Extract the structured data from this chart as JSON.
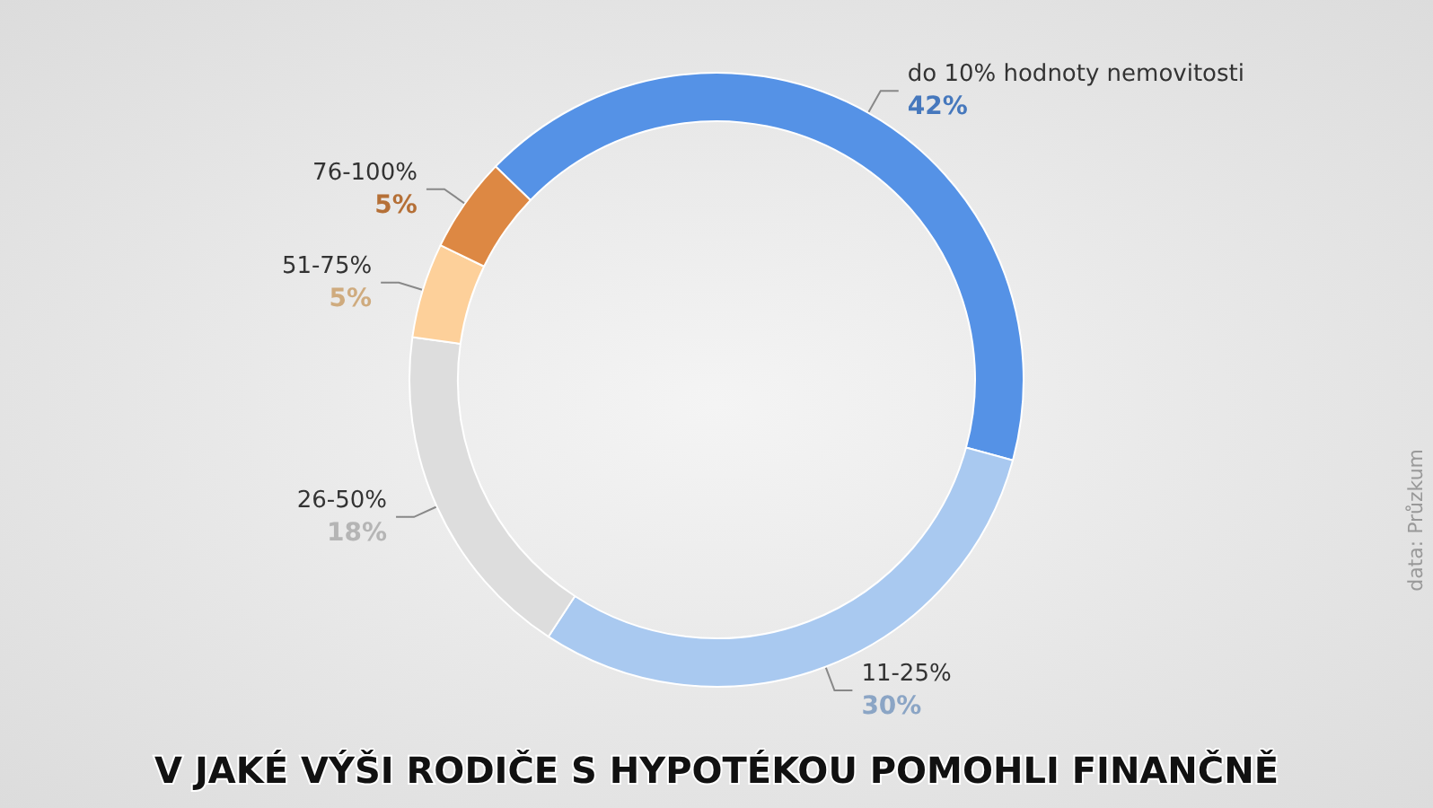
{
  "chart_data": {
    "type": "donut",
    "title": "V JAKÉ VÝŠI RODIČE S HYPOTÉKOU POMOHLI FINANČNĚ",
    "categories": [
      "do 10% hodnoty nemovitosti",
      "11-25%",
      "26-50%",
      "51-75%",
      "76-100%"
    ],
    "values": [
      42,
      30,
      18,
      5,
      5
    ],
    "value_labels": [
      "42%",
      "30%",
      "18%",
      "5%",
      "5%"
    ],
    "colors": [
      "#5592e6",
      "#a9c9f0",
      "#dddddd",
      "#fdd09a",
      "#dd8843"
    ],
    "legend": false,
    "annotations": [
      "data: Průzkum"
    ]
  }
}
